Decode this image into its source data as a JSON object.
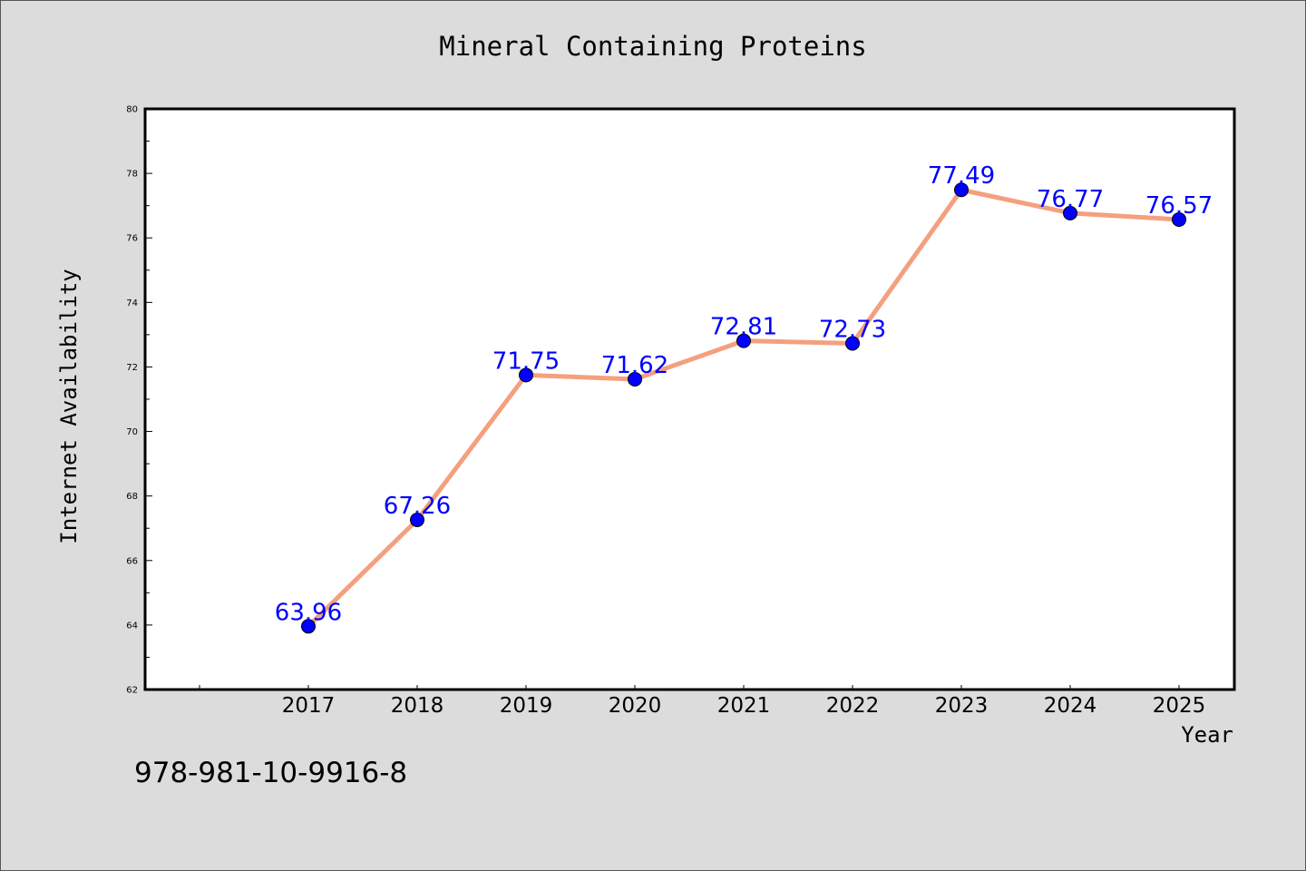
{
  "chart_data": {
    "type": "line",
    "title": "Mineral Containing Proteins",
    "xlabel": "Year",
    "ylabel": "Internet Availability",
    "categories": [
      "2017",
      "2018",
      "2019",
      "2020",
      "2021",
      "2022",
      "2023",
      "2024",
      "2025"
    ],
    "series": [
      {
        "values": [
          63.96,
          67.26,
          71.75,
          71.62,
          72.81,
          72.73,
          77.49,
          76.77,
          76.57
        ],
        "labels": [
          "63.96",
          "67.26",
          "71.75",
          "71.62",
          "72.81",
          "72.73",
          "77.49",
          "76.77",
          "76.57"
        ],
        "line_color": "#f4a07e",
        "marker_color": "#0000ff"
      }
    ],
    "ylim": [
      62,
      80
    ],
    "yticks": [
      "62",
      "64",
      "66",
      "68",
      "70",
      "72",
      "74",
      "76",
      "78",
      "80"
    ],
    "grid": false,
    "legend": "none"
  },
  "footnote": "978-981-10-9916-8"
}
